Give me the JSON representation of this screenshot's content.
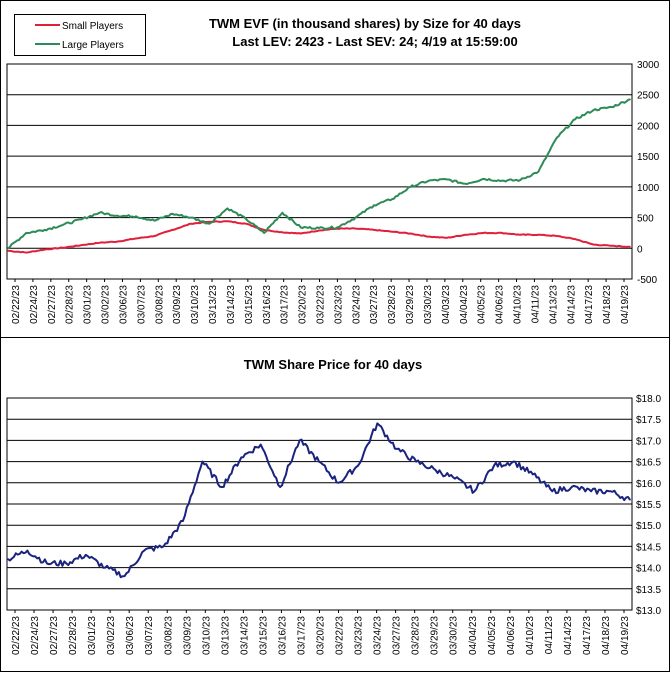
{
  "chart_data": [
    {
      "type": "line",
      "title": "TWM EVF (in thousand shares) by Size for 40 days",
      "subtitle": "Last LEV: 2423 - Last SEV: 24; 4/19 at 15:59:00",
      "legend_position": "top-left",
      "grid": true,
      "ylim": [
        -500,
        3000
      ],
      "yticks": [
        "3000",
        "2500",
        "2000",
        "1500",
        "1000",
        "500",
        "0",
        "-500"
      ],
      "x": [
        "02/22/23",
        "02/24/23",
        "02/27/23",
        "02/28/23",
        "03/01/23",
        "03/02/23",
        "03/06/23",
        "03/07/23",
        "03/08/23",
        "03/09/23",
        "03/10/23",
        "03/13/23",
        "03/14/23",
        "03/15/23",
        "03/16/23",
        "03/17/23",
        "03/20/23",
        "03/22/23",
        "03/23/23",
        "03/24/23",
        "03/27/23",
        "03/28/23",
        "03/29/23",
        "03/30/23",
        "04/03/23",
        "04/04/23",
        "04/05/23",
        "04/06/23",
        "04/10/23",
        "04/11/23",
        "04/13/23",
        "04/14/23",
        "04/17/23",
        "04/18/23",
        "04/19/23"
      ],
      "series": [
        {
          "name": "Small Players",
          "color": "#e0203a",
          "values": [
            -40,
            -70,
            -20,
            10,
            50,
            90,
            110,
            160,
            200,
            300,
            400,
            430,
            440,
            400,
            300,
            260,
            240,
            290,
            320,
            320,
            300,
            270,
            240,
            190,
            170,
            220,
            250,
            250,
            220,
            220,
            200,
            150,
            60,
            40,
            24
          ]
        },
        {
          "name": "Large Players",
          "color": "#2e8b57",
          "values": [
            0,
            250,
            300,
            380,
            470,
            580,
            530,
            520,
            450,
            560,
            500,
            400,
            650,
            480,
            250,
            580,
            340,
            330,
            340,
            500,
            700,
            800,
            1000,
            1100,
            1120,
            1050,
            1130,
            1100,
            1110,
            1250,
            1800,
            2100,
            2250,
            2300,
            2423
          ]
        }
      ]
    },
    {
      "type": "line",
      "title": "TWM Share Price for 40 days",
      "grid": true,
      "ylim": [
        13.0,
        18.0
      ],
      "yticks": [
        "$18.0",
        "$17.5",
        "$17.0",
        "$16.5",
        "$16.0",
        "$15.5",
        "$15.0",
        "$14.5",
        "$14.0",
        "$13.5",
        "$13.0"
      ],
      "x": [
        "02/22/23",
        "02/24/23",
        "02/27/23",
        "02/28/23",
        "03/01/23",
        "03/02/23",
        "03/06/23",
        "03/07/23",
        "03/08/23",
        "03/09/23",
        "03/10/23",
        "03/13/23",
        "03/14/23",
        "03/15/23",
        "03/16/23",
        "03/17/23",
        "03/20/23",
        "03/22/23",
        "03/23/23",
        "03/24/23",
        "03/27/23",
        "03/28/23",
        "03/29/23",
        "03/30/23",
        "04/04/23",
        "04/05/23",
        "04/06/23",
        "04/10/23",
        "04/11/23",
        "04/14/23",
        "04/17/23",
        "04/18/23",
        "04/19/23"
      ],
      "series": [
        {
          "color": "#1a237e",
          "values": [
            14.2,
            14.4,
            14.1,
            14.1,
            14.3,
            14.0,
            13.8,
            14.4,
            14.5,
            15.1,
            16.5,
            15.9,
            16.6,
            16.9,
            15.9,
            17.0,
            16.5,
            16.0,
            16.4,
            17.4,
            16.8,
            16.5,
            16.3,
            16.1,
            15.8,
            16.4,
            16.5,
            16.2,
            15.8,
            15.9,
            15.8,
            15.8,
            15.6
          ]
        }
      ]
    }
  ]
}
